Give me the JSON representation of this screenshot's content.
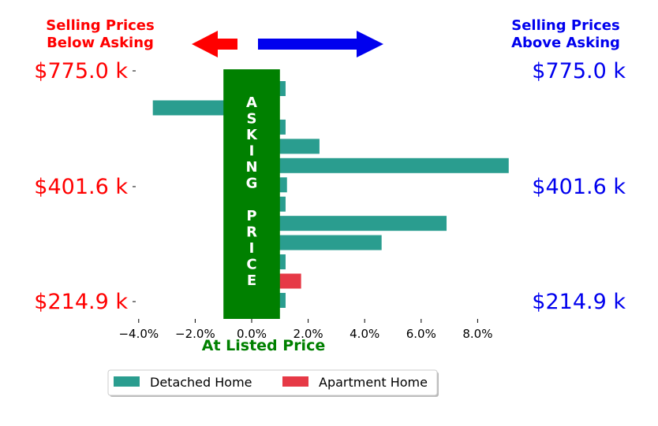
{
  "chart_data": {
    "type": "bar",
    "orientation": "horizontal",
    "xlabel": "At Listed Price",
    "xlim": [
      -4.0,
      9.0
    ],
    "xticks": [
      "-4.0%",
      "-2.0%",
      "0.0%",
      "2.0%",
      "4.0%",
      "6.0%",
      "8.0%"
    ],
    "xtick_values": [
      -4,
      -2,
      0,
      2,
      4,
      6,
      8
    ],
    "left_price_labels": [
      "$775.0 k",
      "$401.6 k",
      "$214.9 k"
    ],
    "right_price_labels": [
      "$775.0 k",
      "$401.6 k",
      "$214.9 k"
    ],
    "left_header": [
      "Selling Prices",
      "Below Asking"
    ],
    "right_header": [
      "Selling Prices",
      "Above Asking"
    ],
    "asking_band": {
      "label_top": [
        "A",
        "S",
        "K",
        "I",
        "N",
        "G"
      ],
      "label_bottom": [
        "P",
        "R",
        "I",
        "C",
        "E"
      ],
      "range": [
        -1.0,
        1.0
      ],
      "color": "#008000"
    },
    "bars": [
      {
        "series": "Detached Home",
        "value": 1.2
      },
      {
        "series": "Detached Home",
        "value": -3.5
      },
      {
        "series": "Detached Home",
        "value": 1.2
      },
      {
        "series": "Detached Home",
        "value": 2.4
      },
      {
        "series": "Detached Home",
        "value": 9.1
      },
      {
        "series": "Detached Home",
        "value": 1.25
      },
      {
        "series": "Detached Home",
        "value": 1.2
      },
      {
        "series": "Detached Home",
        "value": 6.9
      },
      {
        "series": "Detached Home",
        "value": 4.6
      },
      {
        "series": "Detached Home",
        "value": 1.2
      },
      {
        "series": "Apartment Home",
        "value": 1.75
      },
      {
        "series": "Detached Home",
        "value": 1.2
      }
    ],
    "series": [
      {
        "name": "Detached Home",
        "color": "#2a9d8f"
      },
      {
        "name": "Apartment Home",
        "color": "#e63946"
      }
    ],
    "legend_placement": "bottom-center",
    "grid": false
  },
  "colors": {
    "below": "#ff0000",
    "above": "#0000ee",
    "asking": "#008000"
  }
}
